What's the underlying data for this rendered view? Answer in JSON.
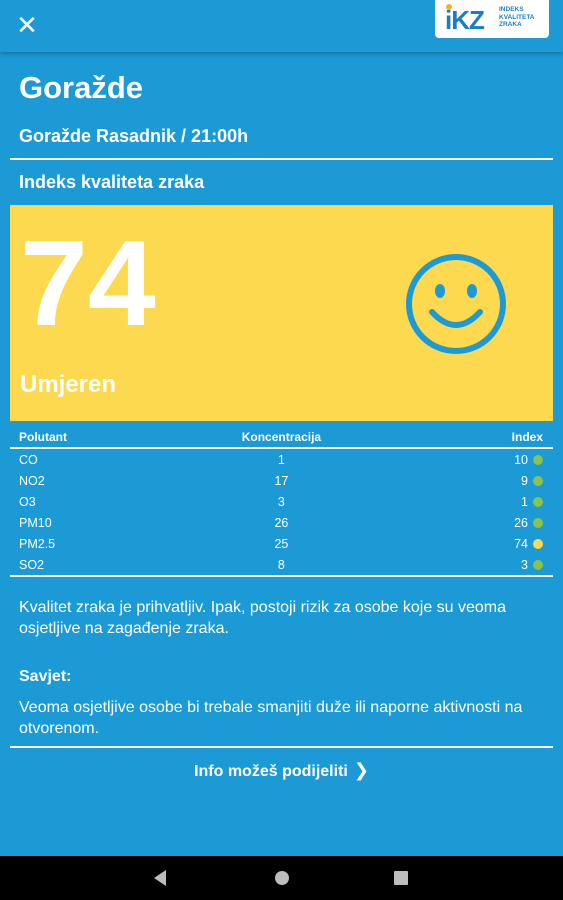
{
  "header": {
    "close_icon": "close-icon",
    "logo": {
      "brand": "iKZ",
      "subtitle": "INDEKS KVALITETA ZRAKA"
    }
  },
  "location": {
    "city": "Goražde",
    "station_time": "Goražde Rasadnik / 21:00h"
  },
  "aqi": {
    "section_title": "Indeks kvaliteta zraka",
    "value": "74",
    "category": "Umjeren",
    "face_icon": "smiley-face-icon",
    "card_color": "#fcd94f",
    "face_color": "#1b9ad6"
  },
  "pollutants": {
    "headers": [
      "Polutant",
      "Koncentracija",
      "Index"
    ],
    "rows": [
      {
        "name": "CO",
        "concentration": "1",
        "index": "10",
        "status_color": "#8bc34a"
      },
      {
        "name": "NO2",
        "concentration": "17",
        "index": "9",
        "status_color": "#8bc34a"
      },
      {
        "name": "O3",
        "concentration": "3",
        "index": "1",
        "status_color": "#8bc34a"
      },
      {
        "name": "PM10",
        "concentration": "26",
        "index": "26",
        "status_color": "#8bc34a"
      },
      {
        "name": "PM2.5",
        "concentration": "25",
        "index": "74",
        "status_color": "#fcd94f"
      },
      {
        "name": "SO2",
        "concentration": "8",
        "index": "3",
        "status_color": "#8bc34a"
      }
    ]
  },
  "description": "Kvalitet zraka je prihvatljiv. Ipak, postoji rizik za osobe koje su veoma osjetljive na zagađenje zraka.",
  "advice": {
    "title": "Savjet:",
    "text": "Veoma osjetljive osobe bi trebale smanjiti duže ili naporne aktivnosti na otvorenom."
  },
  "share": {
    "label": "Info možeš podijeliti",
    "icon": "chevron-right-icon"
  },
  "navbar": {
    "back": "back-icon",
    "home": "home-icon",
    "recents": "recents-icon"
  },
  "colors": {
    "background": "#1b9ad6",
    "accent_yellow": "#fcd94f",
    "status_green": "#8bc34a"
  }
}
